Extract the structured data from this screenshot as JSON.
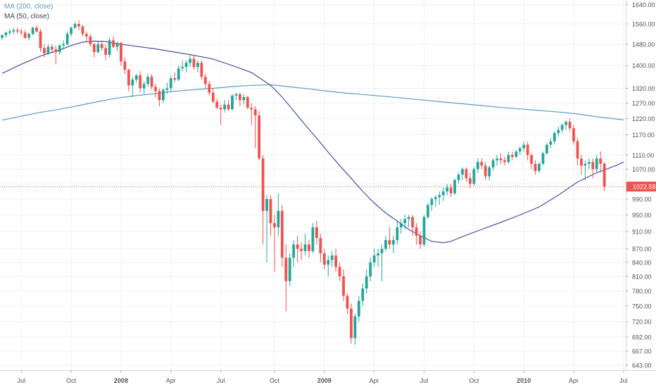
{
  "legend": [
    {
      "label": "MA (200, close)",
      "color": "#5b9cc6"
    },
    {
      "label": "MA (50, close)",
      "color": "#4a4fa0"
    }
  ],
  "last_price_label": "1022.58",
  "colors": {
    "up": "#26a69a",
    "down": "#ef5350",
    "ma200": "#5b9cc6",
    "ma50": "#4a4fa0",
    "grid": "#eef1f6",
    "axis_text": "#50535e"
  },
  "chart_data": {
    "type": "candlestick",
    "y_scale": "log",
    "ylim": [
      635,
      1660
    ],
    "y_ticks": [
      1640,
      1560,
      1480,
      1400,
      1320,
      1270,
      1220,
      1170,
      1110,
      1070,
      1030,
      990,
      950,
      910,
      870,
      840,
      810,
      780,
      750,
      720,
      692,
      667,
      643
    ],
    "x_ticks": [
      {
        "label": "Jul",
        "index": 5
      },
      {
        "label": "Oct",
        "index": 18
      },
      {
        "label": "2008",
        "index": 31
      },
      {
        "label": "Apr",
        "index": 44
      },
      {
        "label": "Jul",
        "index": 57
      },
      {
        "label": "Oct",
        "index": 71
      },
      {
        "label": "2009",
        "index": 84
      },
      {
        "label": "Apr",
        "index": 97
      },
      {
        "label": "Jul",
        "index": 110
      },
      {
        "label": "Oct",
        "index": 123
      },
      {
        "label": "2010",
        "index": 136
      },
      {
        "label": "Apr",
        "index": 149
      },
      {
        "label": "Jul",
        "index": 162
      }
    ],
    "ohlc": [
      [
        1505,
        1520,
        1495,
        1515
      ],
      [
        1515,
        1530,
        1505,
        1525
      ],
      [
        1525,
        1540,
        1515,
        1530
      ],
      [
        1530,
        1545,
        1520,
        1535
      ],
      [
        1535,
        1545,
        1520,
        1530
      ],
      [
        1530,
        1540,
        1515,
        1525
      ],
      [
        1525,
        1535,
        1500,
        1505
      ],
      [
        1505,
        1525,
        1495,
        1520
      ],
      [
        1520,
        1550,
        1515,
        1545
      ],
      [
        1545,
        1555,
        1525,
        1530
      ],
      [
        1530,
        1540,
        1450,
        1465
      ],
      [
        1465,
        1480,
        1430,
        1445
      ],
      [
        1445,
        1480,
        1440,
        1470
      ],
      [
        1470,
        1480,
        1450,
        1460
      ],
      [
        1460,
        1475,
        1405,
        1450
      ],
      [
        1450,
        1480,
        1440,
        1475
      ],
      [
        1475,
        1495,
        1460,
        1480
      ],
      [
        1480,
        1530,
        1475,
        1520
      ],
      [
        1520,
        1550,
        1510,
        1545
      ],
      [
        1545,
        1570,
        1540,
        1560
      ],
      [
        1560,
        1575,
        1535,
        1550
      ],
      [
        1550,
        1555,
        1510,
        1520
      ],
      [
        1520,
        1530,
        1490,
        1510
      ],
      [
        1510,
        1520,
        1470,
        1480
      ],
      [
        1480,
        1485,
        1430,
        1450
      ],
      [
        1450,
        1490,
        1445,
        1480
      ],
      [
        1480,
        1495,
        1455,
        1465
      ],
      [
        1465,
        1480,
        1420,
        1440
      ],
      [
        1440,
        1505,
        1430,
        1495
      ],
      [
        1495,
        1510,
        1465,
        1470
      ],
      [
        1470,
        1490,
        1455,
        1485
      ],
      [
        1485,
        1490,
        1400,
        1415
      ],
      [
        1415,
        1430,
        1370,
        1385
      ],
      [
        1385,
        1390,
        1310,
        1330
      ],
      [
        1330,
        1360,
        1290,
        1350
      ],
      [
        1350,
        1370,
        1340,
        1365
      ],
      [
        1365,
        1380,
        1305,
        1320
      ],
      [
        1320,
        1345,
        1300,
        1335
      ],
      [
        1335,
        1370,
        1325,
        1360
      ],
      [
        1360,
        1370,
        1315,
        1325
      ],
      [
        1325,
        1335,
        1290,
        1310
      ],
      [
        1310,
        1320,
        1260,
        1280
      ],
      [
        1280,
        1320,
        1270,
        1315
      ],
      [
        1315,
        1340,
        1300,
        1320
      ],
      [
        1320,
        1365,
        1310,
        1355
      ],
      [
        1355,
        1375,
        1340,
        1350
      ],
      [
        1350,
        1400,
        1345,
        1390
      ],
      [
        1390,
        1420,
        1380,
        1395
      ],
      [
        1395,
        1420,
        1375,
        1410
      ],
      [
        1410,
        1440,
        1395,
        1425
      ],
      [
        1425,
        1440,
        1385,
        1395
      ],
      [
        1395,
        1420,
        1375,
        1410
      ],
      [
        1410,
        1420,
        1350,
        1360
      ],
      [
        1360,
        1370,
        1320,
        1335
      ],
      [
        1335,
        1345,
        1295,
        1305
      ],
      [
        1305,
        1320,
        1270,
        1275
      ],
      [
        1275,
        1285,
        1250,
        1255
      ],
      [
        1255,
        1265,
        1200,
        1250
      ],
      [
        1250,
        1280,
        1240,
        1265
      ],
      [
        1265,
        1280,
        1245,
        1250
      ],
      [
        1250,
        1300,
        1245,
        1295
      ],
      [
        1295,
        1305,
        1280,
        1300
      ],
      [
        1300,
        1305,
        1260,
        1280
      ],
      [
        1280,
        1300,
        1265,
        1290
      ],
      [
        1290,
        1295,
        1250,
        1255
      ],
      [
        1255,
        1270,
        1200,
        1250
      ],
      [
        1250,
        1260,
        1130,
        1230
      ],
      [
        1230,
        1245,
        1095,
        1100
      ],
      [
        1100,
        1110,
        880,
        960
      ],
      [
        960,
        1000,
        840,
        990
      ],
      [
        990,
        1000,
        900,
        930
      ],
      [
        930,
        950,
        820,
        920
      ],
      [
        920,
        1005,
        900,
        960
      ],
      [
        960,
        975,
        830,
        850
      ],
      [
        850,
        880,
        740,
        800
      ],
      [
        800,
        860,
        790,
        850
      ],
      [
        850,
        890,
        830,
        880
      ],
      [
        880,
        900,
        840,
        870
      ],
      [
        870,
        885,
        845,
        865
      ],
      [
        865,
        905,
        855,
        880
      ],
      [
        880,
        890,
        850,
        865
      ],
      [
        865,
        930,
        860,
        920
      ],
      [
        920,
        935,
        880,
        895
      ],
      [
        895,
        905,
        840,
        860
      ],
      [
        860,
        870,
        825,
        835
      ],
      [
        835,
        855,
        810,
        845
      ],
      [
        845,
        865,
        830,
        855
      ],
      [
        855,
        870,
        820,
        830
      ],
      [
        830,
        840,
        800,
        810
      ],
      [
        810,
        825,
        760,
        770
      ],
      [
        770,
        775,
        735,
        745
      ],
      [
        745,
        755,
        680,
        690
      ],
      [
        690,
        735,
        678,
        730
      ],
      [
        730,
        770,
        720,
        760
      ],
      [
        760,
        795,
        750,
        785
      ],
      [
        785,
        825,
        775,
        810
      ],
      [
        810,
        850,
        800,
        840
      ],
      [
        840,
        870,
        830,
        855
      ],
      [
        855,
        870,
        830,
        860
      ],
      [
        860,
        880,
        800,
        870
      ],
      [
        870,
        900,
        865,
        890
      ],
      [
        890,
        920,
        870,
        880
      ],
      [
        880,
        900,
        860,
        890
      ],
      [
        890,
        935,
        880,
        920
      ],
      [
        920,
        940,
        905,
        930
      ],
      [
        930,
        950,
        915,
        940
      ],
      [
        940,
        950,
        920,
        945
      ],
      [
        945,
        950,
        900,
        920
      ],
      [
        920,
        930,
        880,
        900
      ],
      [
        900,
        910,
        870,
        880
      ],
      [
        880,
        950,
        875,
        945
      ],
      [
        945,
        980,
        940,
        975
      ],
      [
        975,
        995,
        960,
        990
      ],
      [
        990,
        1000,
        970,
        995
      ],
      [
        995,
        1010,
        975,
        1000
      ],
      [
        1000,
        1020,
        985,
        1010
      ],
      [
        1010,
        1030,
        1000,
        1020
      ],
      [
        1020,
        1030,
        995,
        1005
      ],
      [
        1005,
        1045,
        1000,
        1040
      ],
      [
        1040,
        1060,
        1030,
        1055
      ],
      [
        1055,
        1075,
        1040,
        1070
      ],
      [
        1070,
        1075,
        1035,
        1045
      ],
      [
        1045,
        1060,
        1020,
        1030
      ],
      [
        1030,
        1075,
        1025,
        1070
      ],
      [
        1070,
        1100,
        1060,
        1090
      ],
      [
        1090,
        1100,
        1070,
        1080
      ],
      [
        1080,
        1090,
        1040,
        1050
      ],
      [
        1050,
        1080,
        1040,
        1075
      ],
      [
        1075,
        1100,
        1065,
        1095
      ],
      [
        1095,
        1110,
        1080,
        1100
      ],
      [
        1100,
        1115,
        1085,
        1095
      ],
      [
        1095,
        1105,
        1080,
        1090
      ],
      [
        1090,
        1120,
        1085,
        1110
      ],
      [
        1110,
        1120,
        1095,
        1105
      ],
      [
        1105,
        1125,
        1100,
        1120
      ],
      [
        1120,
        1135,
        1110,
        1130
      ],
      [
        1130,
        1150,
        1120,
        1140
      ],
      [
        1140,
        1150,
        1095,
        1110
      ],
      [
        1110,
        1115,
        1070,
        1085
      ],
      [
        1085,
        1095,
        1055,
        1065
      ],
      [
        1065,
        1090,
        1060,
        1085
      ],
      [
        1085,
        1120,
        1080,
        1115
      ],
      [
        1115,
        1145,
        1110,
        1140
      ],
      [
        1140,
        1160,
        1130,
        1150
      ],
      [
        1150,
        1180,
        1140,
        1175
      ],
      [
        1175,
        1195,
        1165,
        1185
      ],
      [
        1185,
        1205,
        1175,
        1200
      ],
      [
        1200,
        1215,
        1185,
        1210
      ],
      [
        1210,
        1220,
        1180,
        1190
      ],
      [
        1190,
        1200,
        1140,
        1150
      ],
      [
        1150,
        1160,
        1080,
        1100
      ],
      [
        1100,
        1110,
        1055,
        1080
      ],
      [
        1080,
        1095,
        1040,
        1085
      ],
      [
        1085,
        1100,
        1070,
        1090
      ],
      [
        1090,
        1100,
        1045,
        1070
      ],
      [
        1070,
        1110,
        1060,
        1100
      ],
      [
        1100,
        1120,
        1060,
        1085
      ],
      [
        1085,
        1090,
        1010,
        1022.58
      ]
    ],
    "ma200": [
      [
        0,
        1215
      ],
      [
        5,
        1228
      ],
      [
        10,
        1240
      ],
      [
        15,
        1250
      ],
      [
        20,
        1262
      ],
      [
        25,
        1275
      ],
      [
        30,
        1287
      ],
      [
        35,
        1295
      ],
      [
        40,
        1302
      ],
      [
        45,
        1310
      ],
      [
        50,
        1315
      ],
      [
        55,
        1320
      ],
      [
        60,
        1326
      ],
      [
        65,
        1330
      ],
      [
        70,
        1332
      ],
      [
        75,
        1325
      ],
      [
        80,
        1318
      ],
      [
        85,
        1310
      ],
      [
        90,
        1303
      ],
      [
        95,
        1298
      ],
      [
        100,
        1292
      ],
      [
        105,
        1286
      ],
      [
        110,
        1280
      ],
      [
        115,
        1274
      ],
      [
        120,
        1268
      ],
      [
        125,
        1262
      ],
      [
        130,
        1256
      ],
      [
        135,
        1251
      ],
      [
        140,
        1246
      ],
      [
        145,
        1241
      ],
      [
        150,
        1235
      ],
      [
        155,
        1226
      ],
      [
        162,
        1216
      ]
    ],
    "ma50": [
      [
        0,
        1372
      ],
      [
        5,
        1405
      ],
      [
        10,
        1435
      ],
      [
        15,
        1458
      ],
      [
        18,
        1475
      ],
      [
        21,
        1488
      ],
      [
        24,
        1492
      ],
      [
        27,
        1490
      ],
      [
        30,
        1482
      ],
      [
        35,
        1472
      ],
      [
        40,
        1462
      ],
      [
        45,
        1450
      ],
      [
        50,
        1438
      ],
      [
        55,
        1424
      ],
      [
        60,
        1400
      ],
      [
        65,
        1375
      ],
      [
        70,
        1330
      ],
      [
        73,
        1290
      ],
      [
        76,
        1245
      ],
      [
        79,
        1200
      ],
      [
        82,
        1160
      ],
      [
        85,
        1118
      ],
      [
        88,
        1080
      ],
      [
        91,
        1045
      ],
      [
        94,
        1010
      ],
      [
        97,
        980
      ],
      [
        100,
        955
      ],
      [
        103,
        935
      ],
      [
        106,
        915
      ],
      [
        109,
        900
      ],
      [
        112,
        887
      ],
      [
        115,
        884
      ],
      [
        117,
        887
      ],
      [
        120,
        898
      ],
      [
        125,
        915
      ],
      [
        130,
        932
      ],
      [
        135,
        950
      ],
      [
        140,
        970
      ],
      [
        145,
        1000
      ],
      [
        150,
        1035
      ],
      [
        155,
        1060
      ],
      [
        160,
        1080
      ],
      [
        162,
        1090
      ]
    ]
  }
}
